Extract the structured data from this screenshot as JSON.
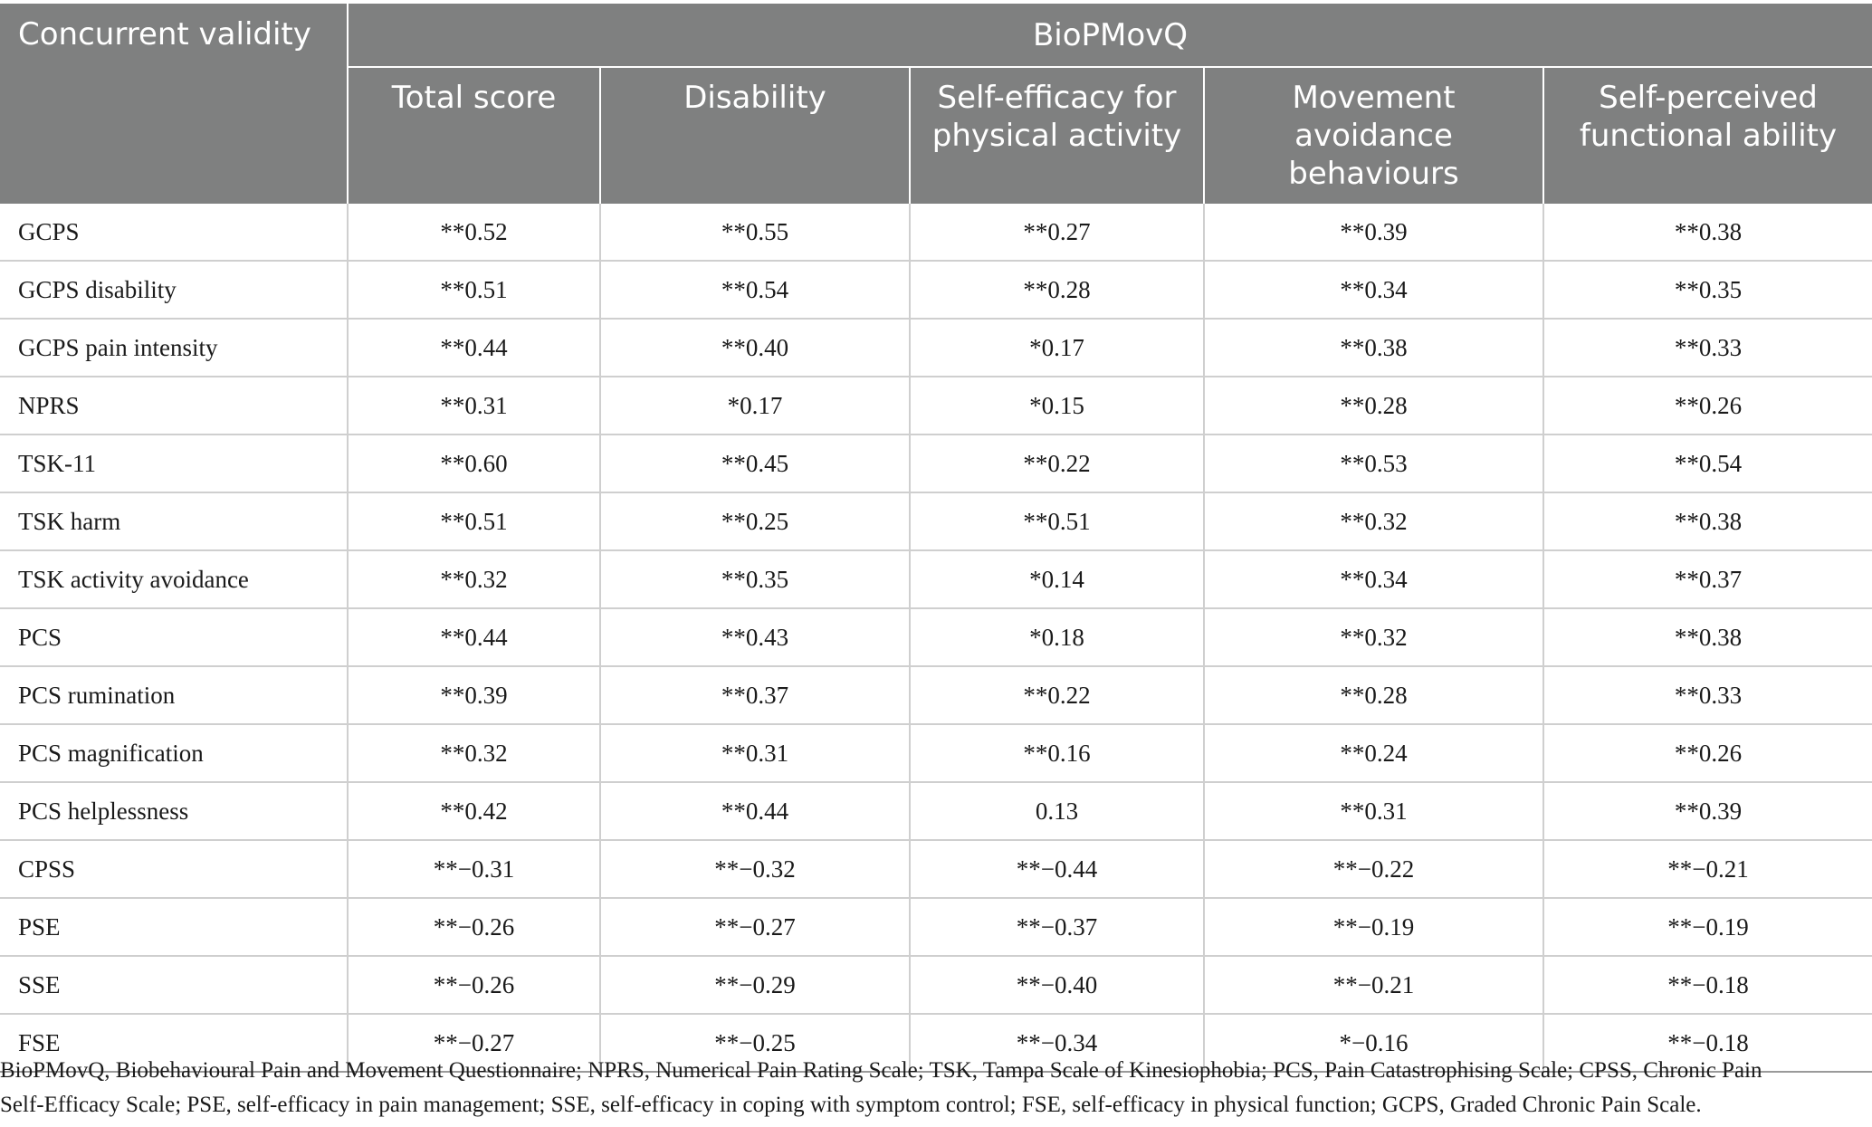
{
  "table": {
    "corner_header": "Concurrent validity",
    "group_header": "BioPMovQ",
    "sub_headers": [
      [
        "Total score"
      ],
      [
        "Disability"
      ],
      [
        "Self-efficacy for",
        "physical activity"
      ],
      [
        "Movement",
        "avoidance",
        "behaviours"
      ],
      [
        "Self-perceived",
        "functional ability"
      ]
    ],
    "rows": [
      {
        "label": "GCPS",
        "values": [
          "**0.52",
          "**0.55",
          "**0.27",
          "**0.39",
          "**0.38"
        ]
      },
      {
        "label": "GCPS disability",
        "values": [
          "**0.51",
          "**0.54",
          "**0.28",
          "**0.34",
          "**0.35"
        ]
      },
      {
        "label": "GCPS pain intensity",
        "values": [
          "**0.44",
          "**0.40",
          "*0.17",
          "**0.38",
          "**0.33"
        ]
      },
      {
        "label": "NPRS",
        "values": [
          "**0.31",
          "*0.17",
          "*0.15",
          "**0.28",
          "**0.26"
        ]
      },
      {
        "label": "TSK-11",
        "values": [
          "**0.60",
          "**0.45",
          "**0.22",
          "**0.53",
          "**0.54"
        ]
      },
      {
        "label": "TSK harm",
        "values": [
          "**0.51",
          "**0.25",
          "**0.51",
          "**0.32",
          "**0.38"
        ]
      },
      {
        "label": "TSK activity avoidance",
        "values": [
          "**0.32",
          "**0.35",
          "*0.14",
          "**0.34",
          "**0.37"
        ]
      },
      {
        "label": "PCS",
        "values": [
          "**0.44",
          "**0.43",
          "*0.18",
          "**0.32",
          "**0.38"
        ]
      },
      {
        "label": "PCS rumination",
        "values": [
          "**0.39",
          "**0.37",
          "**0.22",
          "**0.28",
          "**0.33"
        ]
      },
      {
        "label": "PCS magnification",
        "values": [
          "**0.32",
          "**0.31",
          "**0.16",
          "**0.24",
          "**0.26"
        ]
      },
      {
        "label": "PCS helplessness",
        "values": [
          "**0.42",
          "**0.44",
          "0.13",
          "**0.31",
          "**0.39"
        ]
      },
      {
        "label": "CPSS",
        "values": [
          "**−0.31",
          "**−0.32",
          "**−0.44",
          "**−0.22",
          "**−0.21"
        ]
      },
      {
        "label": "PSE",
        "values": [
          "**−0.26",
          "**−0.27",
          "**−0.37",
          "**−0.19",
          "**−0.19"
        ]
      },
      {
        "label": "SSE",
        "values": [
          "**−0.26",
          "**−0.29",
          "**−0.40",
          "**−0.21",
          "**−0.18"
        ]
      },
      {
        "label": "FSE",
        "values": [
          "**−0.27",
          "**−0.25",
          "**−0.34",
          "*−0.16",
          "**−0.18"
        ]
      }
    ]
  },
  "footnote": [
    "BioPMovQ, Biobehavioural Pain and Movement Questionnaire; NPRS, Numerical Pain Rating Scale; TSK, Tampa Scale of Kinesiophobia; PCS, Pain Catastrophising Scale; CPSS, Chronic Pain",
    "Self-Efficacy Scale; PSE, self-efficacy in pain management; SSE, self-efficacy in coping with symptom control; FSE, self-efficacy in physical function; GCPS, Graded Chronic Pain Scale."
  ]
}
